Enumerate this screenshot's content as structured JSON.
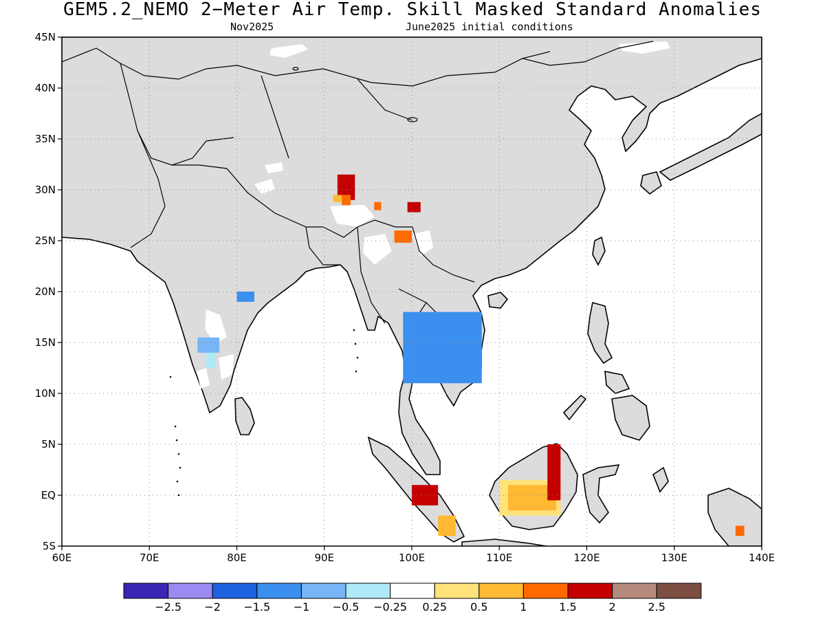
{
  "title": "GEM5.2_NEMO 2−Meter Air Temp. Skill Masked Standard Anomalies",
  "subtitle_left": "Nov2025",
  "subtitle_right": "June2025 initial conditions",
  "map": {
    "lon_range": [
      60,
      140
    ],
    "lat_range": [
      -5,
      45
    ],
    "land_color": "#dcdcdc",
    "coast_color": "#000000",
    "grid_style": "dotted",
    "lon_ticks": [
      {
        "value": 60,
        "label": "60E"
      },
      {
        "value": 70,
        "label": "70E"
      },
      {
        "value": 80,
        "label": "80E"
      },
      {
        "value": 90,
        "label": "90E"
      },
      {
        "value": 100,
        "label": "100E"
      },
      {
        "value": 110,
        "label": "110E"
      },
      {
        "value": 120,
        "label": "120E"
      },
      {
        "value": 130,
        "label": "130E"
      },
      {
        "value": 140,
        "label": "140E"
      }
    ],
    "lat_ticks": [
      {
        "value": 45,
        "label": "45N"
      },
      {
        "value": 40,
        "label": "40N"
      },
      {
        "value": 35,
        "label": "35N"
      },
      {
        "value": 30,
        "label": "30N"
      },
      {
        "value": 25,
        "label": "25N"
      },
      {
        "value": 20,
        "label": "20N"
      },
      {
        "value": 15,
        "label": "15N"
      },
      {
        "value": 10,
        "label": "10N"
      },
      {
        "value": 5,
        "label": "5N"
      },
      {
        "value": 0,
        "label": "EQ"
      },
      {
        "value": -5,
        "label": "5S"
      }
    ]
  },
  "colorbar": {
    "colors": [
      "#3a26b5",
      "#9b8af2",
      "#1f62e0",
      "#3b8fef",
      "#77b5f7",
      "#aee9f7",
      "#ffffff",
      "#ffe27a",
      "#ffb932",
      "#ff6a00",
      "#c40000",
      "#b58a7d",
      "#7d4f42"
    ],
    "labels": [
      "−2.5",
      "−2",
      "−1.5",
      "−1",
      "−0.5",
      "−0.25",
      "0.25",
      "0.5",
      "1",
      "1.5",
      "2",
      "2.5"
    ]
  },
  "anomaly_patches": [
    {
      "region": "Tibet",
      "category": 2.0,
      "lon": [
        91.5,
        93.5
      ],
      "lat": [
        29.0,
        31.5
      ],
      "color": "#c40000"
    },
    {
      "region": "Tibet",
      "category": 1.5,
      "lon": [
        92.0,
        93.0
      ],
      "lat": [
        28.5,
        29.5
      ],
      "color": "#ff6a00"
    },
    {
      "region": "Tibet",
      "category": 1.0,
      "lon": [
        91.0,
        92.0
      ],
      "lat": [
        28.8,
        29.5
      ],
      "color": "#ffb932"
    },
    {
      "region": "SE Tibet",
      "category": 1.5,
      "lon": [
        95.7,
        96.5
      ],
      "lat": [
        28.0,
        28.8
      ],
      "color": "#ff6a00"
    },
    {
      "region": "Yunnan",
      "category": 2.0,
      "lon": [
        99.5,
        101.0
      ],
      "lat": [
        27.8,
        28.8
      ],
      "color": "#c40000"
    },
    {
      "region": "Myanmar north",
      "category": 1.5,
      "lon": [
        98.0,
        100.0
      ],
      "lat": [
        24.8,
        26.0
      ],
      "color": "#ff6a00"
    },
    {
      "region": "India east",
      "category": -1.5,
      "lon": [
        80.0,
        82.0
      ],
      "lat": [
        19.0,
        20.0
      ],
      "color": "#3b8fef"
    },
    {
      "region": "India west",
      "category": -0.5,
      "lon": [
        75.5,
        78.0
      ],
      "lat": [
        14.0,
        15.5
      ],
      "color": "#77b5f7"
    },
    {
      "region": "India west",
      "category": -0.25,
      "lon": [
        76.5,
        77.5
      ],
      "lat": [
        12.5,
        14.0
      ],
      "color": "#aee9f7"
    },
    {
      "region": "Thailand/Cambodia",
      "category": -1.5,
      "lon": [
        99.0,
        108.0
      ],
      "lat": [
        11.0,
        18.0
      ],
      "color": "#3b8fef"
    },
    {
      "region": "Borneo",
      "category": 0.5,
      "lon": [
        110.0,
        117.0
      ],
      "lat": [
        -2.0,
        1.5
      ],
      "color": "#ffe27a"
    },
    {
      "region": "Borneo",
      "category": 1.0,
      "lon": [
        111.0,
        116.5
      ],
      "lat": [
        -1.5,
        1.0
      ],
      "color": "#ffb932"
    },
    {
      "region": "Borneo",
      "category": 2.0,
      "lon": [
        115.5,
        117.0
      ],
      "lat": [
        -0.5,
        5.0
      ],
      "color": "#c40000"
    },
    {
      "region": "Sumatra",
      "category": 2.0,
      "lon": [
        100.0,
        103.0
      ],
      "lat": [
        -1.0,
        1.0
      ],
      "color": "#c40000"
    },
    {
      "region": "Sumatra",
      "category": 1.0,
      "lon": [
        103.0,
        105.0
      ],
      "lat": [
        -4.0,
        -2.0
      ],
      "color": "#ffb932"
    },
    {
      "region": "New Guinea",
      "category": 1.5,
      "lon": [
        137.0,
        138.0
      ],
      "lat": [
        -4.0,
        -3.0
      ],
      "color": "#ff6a00"
    }
  ]
}
